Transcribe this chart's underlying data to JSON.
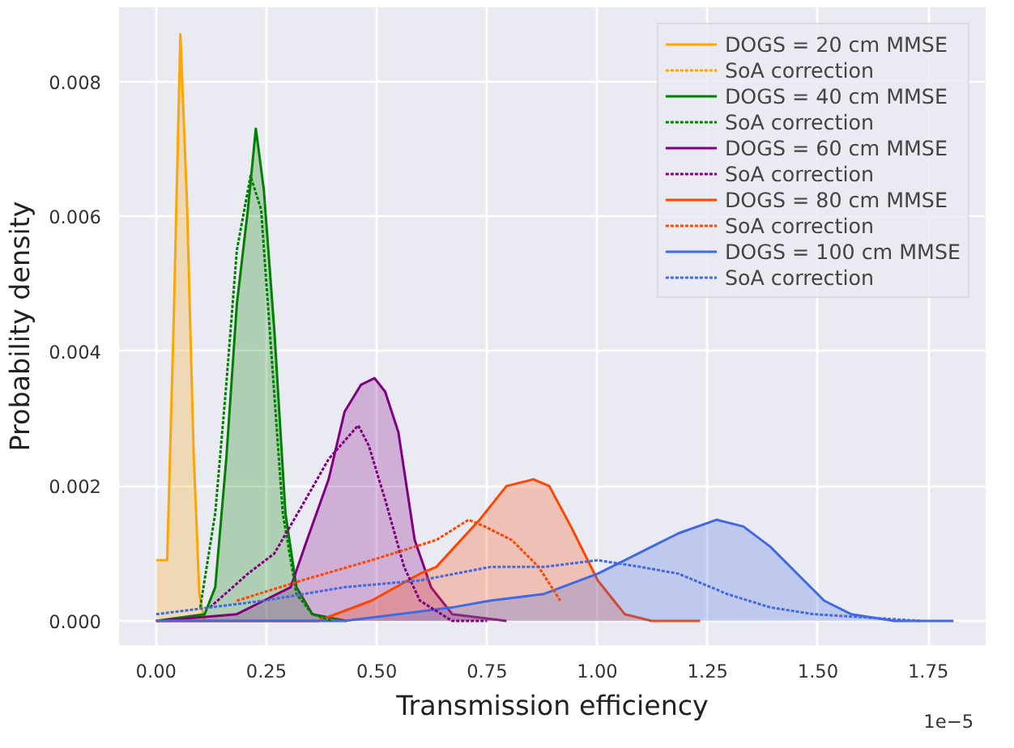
{
  "chart_data": {
    "type": "area",
    "xlabel": "Transmission efficiency",
    "ylabel": "Probability density",
    "annotations": [
      "1e−5"
    ],
    "xlim": [
      -0.084,
      1.88
    ],
    "ylim": [
      -0.00036,
      0.0091
    ],
    "xticks": [
      {
        "value": 0,
        "label": "0.00"
      },
      0.25,
      {
        "value": 0.5,
        "label": "0.50"
      },
      0.75,
      {
        "value": 1,
        "label": "1.00"
      },
      1.25,
      {
        "value": 1.5,
        "label": "1.50"
      },
      1.75
    ],
    "yticks": [
      {
        "value": 0,
        "label": "0.000"
      },
      0.002,
      0.004,
      0.006,
      0.008
    ],
    "grid": true,
    "legend": "top right",
    "series": [
      {
        "name": "DOGS = 20 cm MMSE",
        "color": "#ffa500",
        "x": [
          0,
          0.025,
          0.04,
          0.055,
          0.07,
          0.085,
          0.098,
          0.11
        ],
        "values": [
          0.0009,
          0.0009,
          0.0045,
          0.0087,
          0.0062,
          0.0025,
          0.0004,
          0
        ]
      },
      {
        "name": "SoA correction",
        "type": "line",
        "line_style": "dashed",
        "color": "#ffa500"
      },
      {
        "name": "DOGS = 40 cm MMSE",
        "color": "#008000",
        "x": [
          0,
          0.11,
          0.134,
          0.159,
          0.183,
          0.208,
          0.226,
          0.244,
          0.268,
          0.293,
          0.318,
          0.354,
          0.432
        ],
        "values": [
          0,
          0.0001,
          0.0005,
          0.0024,
          0.0047,
          0.0061,
          0.0073,
          0.0064,
          0.0043,
          0.0016,
          0.0005,
          0.0001,
          0
        ]
      },
      {
        "name": "SoA correction",
        "type": "line",
        "line_style": "dashed",
        "color": "#008000",
        "x": [
          0.1,
          0.134,
          0.159,
          0.183,
          0.214,
          0.238,
          0.262,
          0.287,
          0.318,
          0.354,
          0.4
        ],
        "values": [
          0.0002,
          0.0016,
          0.0035,
          0.0055,
          0.0066,
          0.0061,
          0.0039,
          0.0016,
          0.0004,
          0.0001,
          0
        ]
      },
      {
        "name": "DOGS = 60 cm MMSE",
        "color": "#800080",
        "x": [
          0,
          0.183,
          0.244,
          0.305,
          0.342,
          0.391,
          0.427,
          0.464,
          0.495,
          0.519,
          0.549,
          0.586,
          0.623,
          0.671,
          0.794
        ],
        "values": [
          0,
          0.0001,
          0.0003,
          0.0005,
          0.0012,
          0.0021,
          0.0031,
          0.0035,
          0.0036,
          0.0034,
          0.0028,
          0.0012,
          0.0005,
          0.0001,
          0
        ]
      },
      {
        "name": "SoA correction",
        "type": "line",
        "line_style": "dashed",
        "color": "#800080",
        "x": [
          0.122,
          0.208,
          0.268,
          0.33,
          0.391,
          0.458,
          0.482,
          0.519,
          0.562,
          0.598,
          0.671,
          0.75
        ],
        "values": [
          0.0002,
          0.0007,
          0.001,
          0.0017,
          0.0024,
          0.0029,
          0.0026,
          0.0018,
          0.0008,
          0.0003,
          0,
          0
        ]
      },
      {
        "name": "DOGS = 80 cm MMSE",
        "color": "#ff4500",
        "x": [
          0,
          0.366,
          0.488,
          0.598,
          0.635,
          0.733,
          0.794,
          0.855,
          0.891,
          0.94,
          1.001,
          1.062,
          1.123,
          1.233
        ],
        "values": [
          0,
          0,
          0.0003,
          0.0007,
          0.0008,
          0.0015,
          0.002,
          0.0021,
          0.002,
          0.0014,
          0.0006,
          0.0001,
          0,
          0
        ]
      },
      {
        "name": "SoA correction",
        "type": "line",
        "line_style": "dashed",
        "color": "#ff4500",
        "x": [
          0.183,
          0.33,
          0.488,
          0.586,
          0.635,
          0.708,
          0.745,
          0.806,
          0.867,
          0.916
        ],
        "values": [
          0.0003,
          0.0006,
          0.0009,
          0.0011,
          0.0012,
          0.0015,
          0.0014,
          0.0012,
          0.0008,
          0.0003
        ]
      },
      {
        "name": "DOGS = 100 cm MMSE",
        "color": "#4169e1",
        "x": [
          0,
          0.427,
          0.671,
          0.757,
          0.879,
          1.001,
          1.062,
          1.123,
          1.184,
          1.27,
          1.331,
          1.392,
          1.453,
          1.514,
          1.575,
          1.673,
          1.807
        ],
        "values": [
          0,
          0,
          0.0002,
          0.0003,
          0.0004,
          0.0007,
          0.0009,
          0.0011,
          0.0013,
          0.0015,
          0.0014,
          0.0011,
          0.0007,
          0.0003,
          0.0001,
          0,
          0
        ]
      },
      {
        "name": "SoA correction",
        "type": "line",
        "line_style": "dashed",
        "color": "#4169e1",
        "x": [
          0,
          0.244,
          0.427,
          0.598,
          0.757,
          0.879,
          1.001,
          1.099,
          1.184,
          1.294,
          1.392,
          1.49,
          1.734
        ],
        "values": [
          0.0001,
          0.0003,
          0.0005,
          0.0006,
          0.0008,
          0.0008,
          0.0009,
          0.0008,
          0.0007,
          0.0004,
          0.0002,
          0.0001,
          0
        ]
      }
    ]
  }
}
